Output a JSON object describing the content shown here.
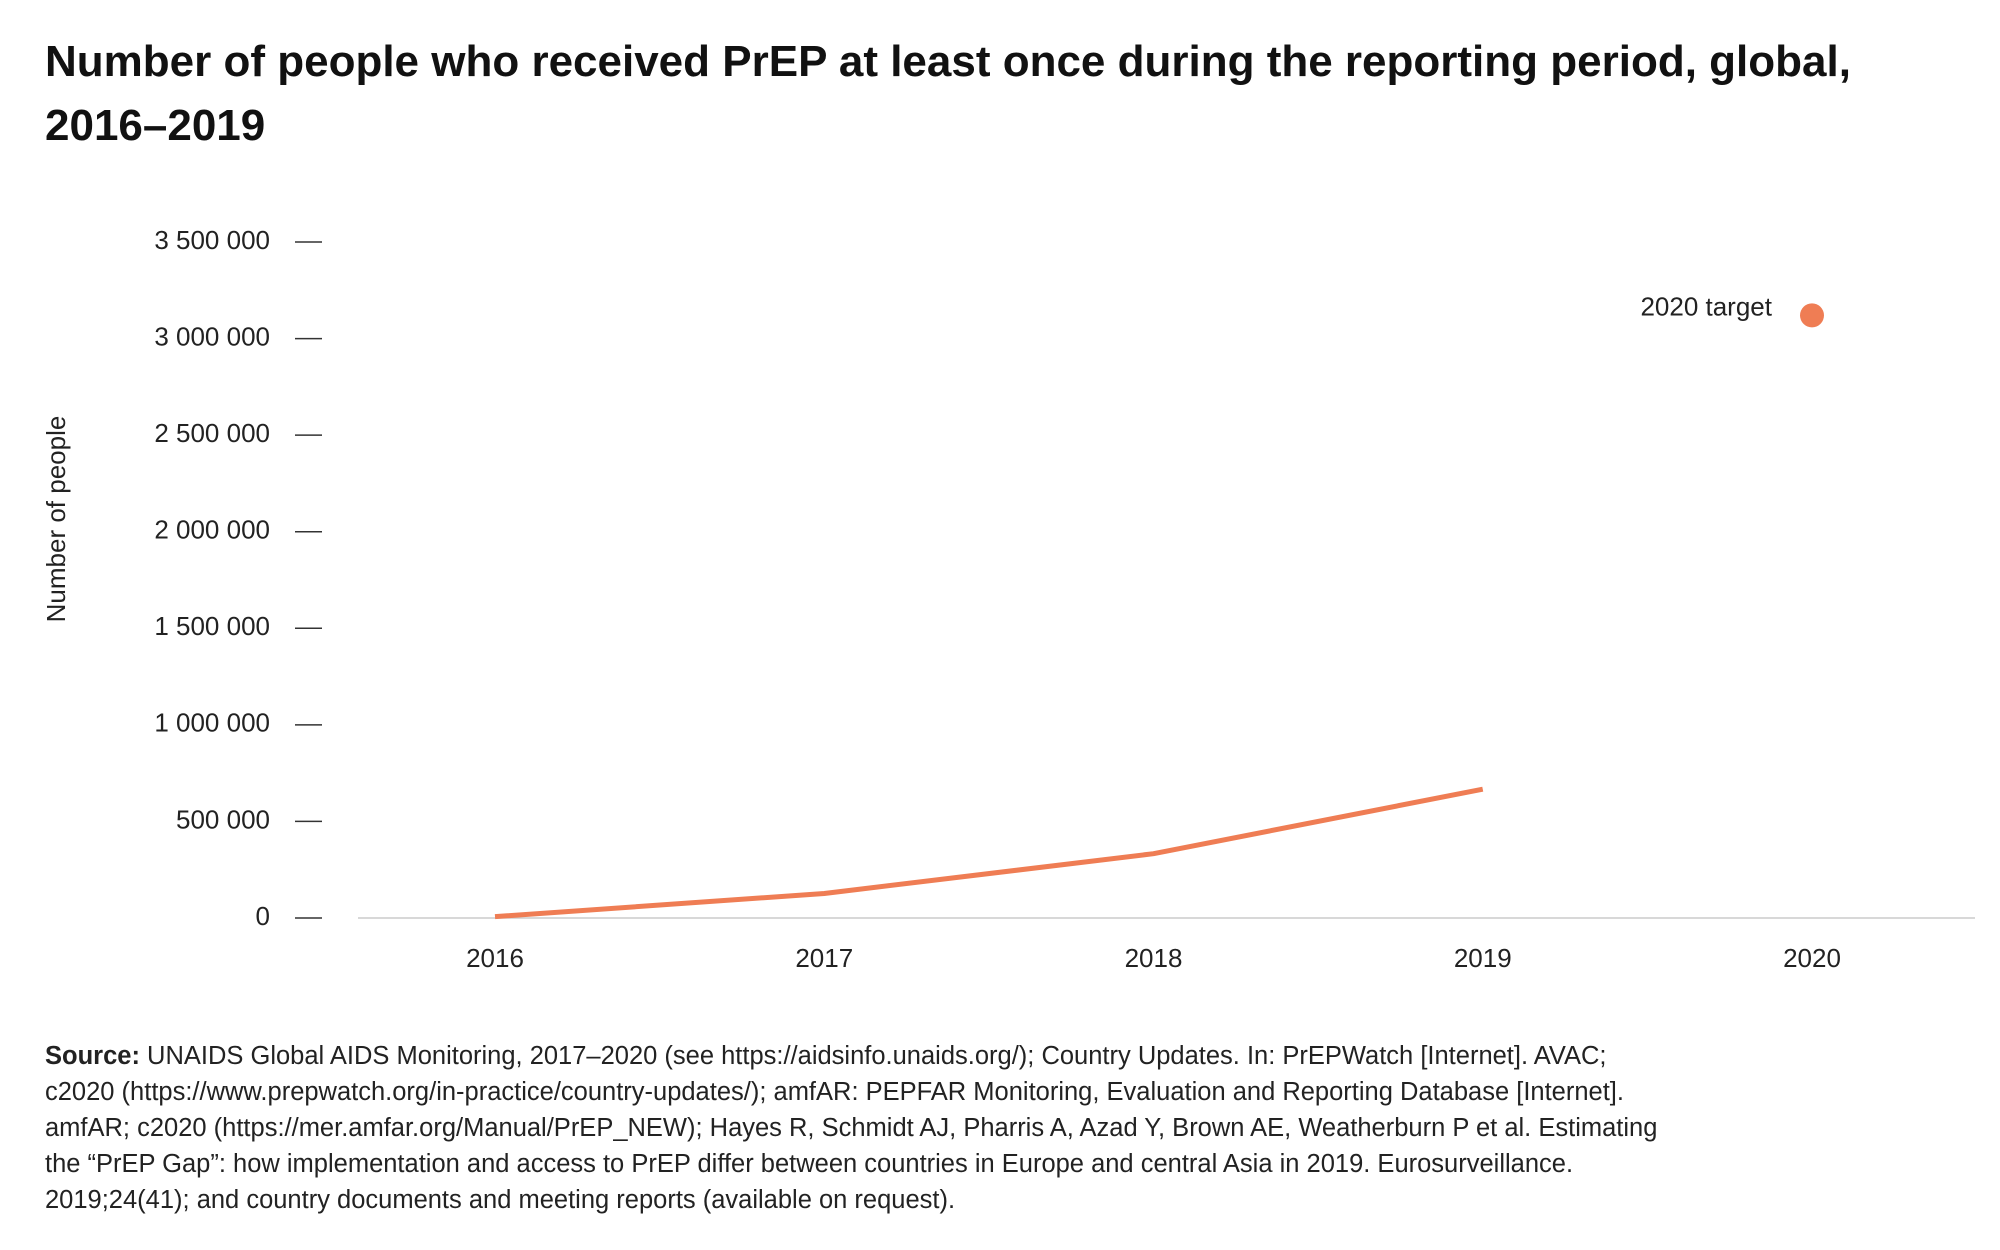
{
  "chart_data": {
    "type": "line",
    "title": "Number of people who received PrEP at least once during the reporting period, global, 2016–2019",
    "y_label": "Number of people",
    "categories": [
      "2016",
      "2017",
      "2018",
      "2019",
      "2020"
    ],
    "series": [
      {
        "name": "Number of people",
        "color": "#ef7d54",
        "values": [
          7000,
          127000,
          333000,
          667000,
          null
        ]
      },
      {
        "name": "2020 target",
        "color": "#ef7d54",
        "values": [
          null,
          null,
          null,
          null,
          3120000
        ]
      }
    ],
    "ylim": [
      0,
      3500000
    ],
    "yticks": [
      0,
      {
        "value": 500000,
        "label": "500 000"
      },
      {
        "value": 1000000,
        "label": "1 000 000"
      },
      {
        "value": 1500000,
        "label": "1 500 000"
      },
      {
        "value": 2000000,
        "label": "2 000 000"
      },
      {
        "value": 2500000,
        "label": "2 500 000"
      },
      {
        "value": 3000000,
        "label": "3 000 000"
      },
      {
        "value": 3500000,
        "label": "3 500 000"
      }
    ]
  },
  "source": {
    "label": "Source:",
    "lines": [
      "UNAIDS Global AIDS Monitoring, 2017–2020 (see https://aidsinfo.unaids.org/); Country Updates. In: PrEPWatch [Internet]. AVAC;",
      "c2020 (https://www.prepwatch.org/in-practice/country-updates/); amfAR: PEPFAR Monitoring, Evaluation and Reporting Database [Internet].",
      "amfAR; c2020 (https://mer.amfar.org/Manual/PrEP_NEW); Hayes R, Schmidt AJ, Pharris A, Azad Y, Brown AE, Weatherburn P et al. Estimating",
      "the “PrEP Gap”: how implementation and access to PrEP differ between countries in Europe and central Asia in 2019. Eurosurveillance.",
      "2019;24(41); and country documents and meeting reports (available on request)."
    ]
  }
}
